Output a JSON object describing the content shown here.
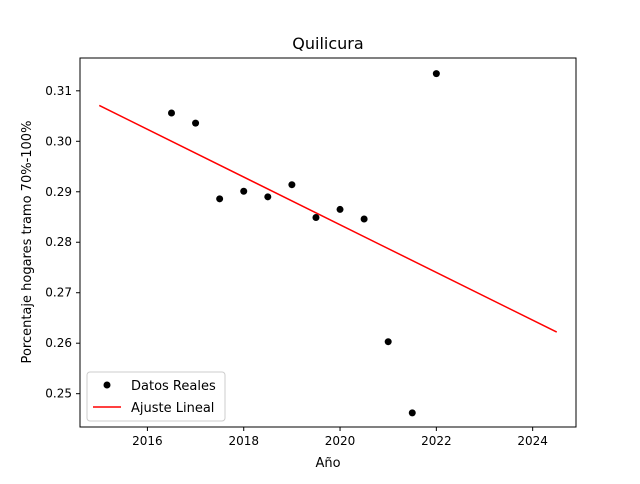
{
  "chart_data": {
    "type": "scatter",
    "title": "Quilicura",
    "xlabel": "Año",
    "ylabel": "Porcentaje hogares tramo 70%-100%",
    "xlim": [
      2014.6,
      2024.9
    ],
    "ylim": [
      0.2434,
      0.3165
    ],
    "x_ticks": [
      2016,
      2018,
      2020,
      2022,
      2024
    ],
    "y_ticks": [
      0.25,
      0.26,
      0.27,
      0.28,
      0.29,
      0.3,
      0.31
    ],
    "x_tick_labels": [
      "2016",
      "2018",
      "2020",
      "2022",
      "2024"
    ],
    "y_tick_labels": [
      "0.25",
      "0.26",
      "0.27",
      "0.28",
      "0.29",
      "0.30",
      "0.31"
    ],
    "grid": false,
    "legend_position": "lower-left",
    "series": [
      {
        "name": "Datos Reales",
        "kind": "scatter",
        "color": "#000000",
        "x": [
          2016.5,
          2017.0,
          2017.5,
          2018.0,
          2018.5,
          2019.0,
          2019.5,
          2020.0,
          2020.5,
          2021.0,
          2021.5,
          2022.0
        ],
        "y": [
          0.3056,
          0.3036,
          0.2886,
          0.2901,
          0.289,
          0.2914,
          0.2849,
          0.2865,
          0.2846,
          0.2603,
          0.2462,
          0.3134
        ]
      },
      {
        "name": "Ajuste Lineal",
        "kind": "line",
        "color": "#ff0000",
        "x": [
          2015.0,
          2024.5
        ],
        "y": [
          0.3071,
          0.2622
        ]
      }
    ]
  }
}
